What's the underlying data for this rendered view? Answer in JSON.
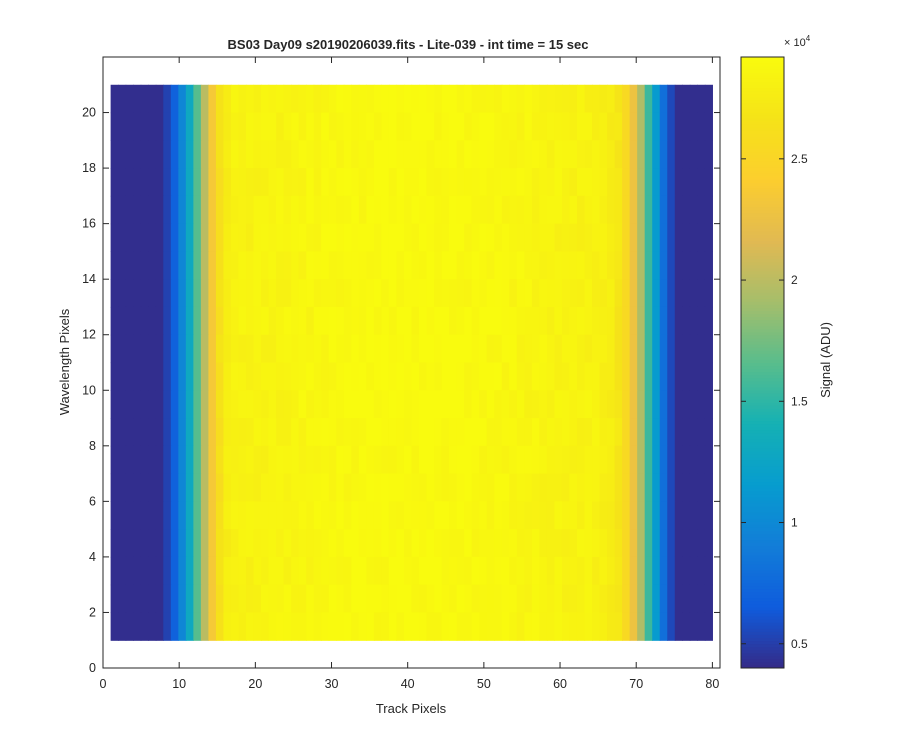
{
  "chart_data": {
    "type": "heatmap",
    "title": "BS03 Day09  s20190206039.fits - Lite-039 - int time = 15 sec",
    "xlabel": "Track Pixels",
    "ylabel": "Wavelength Pixels",
    "xlim": [
      0,
      81
    ],
    "ylim": [
      0,
      22
    ],
    "xticks": [
      "0",
      "10",
      "20",
      "30",
      "40",
      "50",
      "60",
      "70",
      "80"
    ],
    "yticks": [
      "0",
      "2",
      "4",
      "6",
      "8",
      "10",
      "12",
      "14",
      "16",
      "18",
      "20"
    ],
    "x_range": [
      1,
      80
    ],
    "y_range": [
      1,
      21
    ],
    "track_profile_adu": [
      4200,
      4200,
      4200,
      4200,
      4200,
      4200,
      4200,
      5200,
      7000,
      9800,
      13000,
      16500,
      20000,
      23500,
      26300,
      27700,
      28300,
      28300,
      28300,
      28350,
      28400,
      28450,
      28500,
      28550,
      28600,
      28650,
      28700,
      28750,
      28800,
      28850,
      28900,
      28900,
      28950,
      28950,
      29000,
      29000,
      29000,
      29050,
      29050,
      29050,
      29050,
      29050,
      29050,
      29000,
      29000,
      29000,
      28950,
      28950,
      28900,
      28900,
      28850,
      28800,
      28750,
      28700,
      28650,
      28600,
      28550,
      28500,
      28450,
      28400,
      28350,
      28300,
      28300,
      28300,
      28200,
      28000,
      27700,
      27000,
      25500,
      22800,
      19500,
      15500,
      11500,
      8000,
      5500,
      4200,
      4200,
      4200,
      4200,
      4200
    ],
    "colorbar": {
      "label": "Signal (ADU)",
      "multiplier": "× 10",
      "exponent": "4",
      "ticks": [
        0.5,
        1,
        1.5,
        2,
        2.5
      ],
      "tick_labels": [
        "0.5",
        "1",
        "1.5",
        "2",
        "2.5"
      ],
      "clim": [
        4000,
        29200
      ],
      "colormap": "parula"
    },
    "grid": false
  }
}
